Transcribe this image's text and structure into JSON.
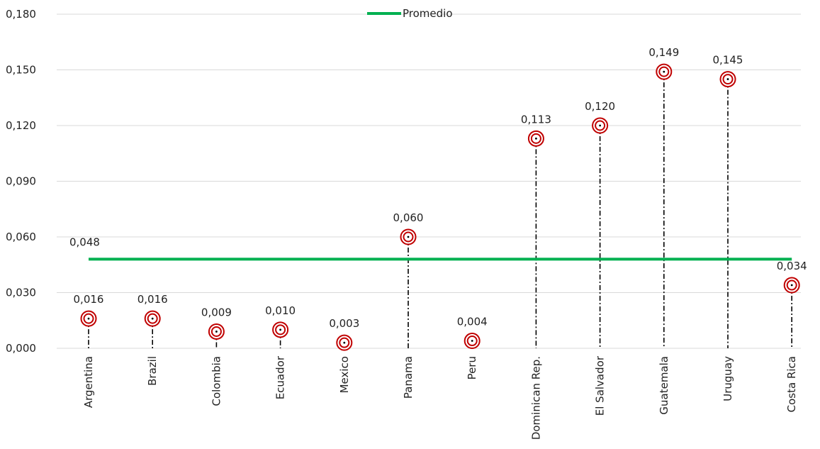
{
  "chart_data": {
    "type": "scatter",
    "title": "",
    "xlabel": "",
    "ylabel": "",
    "categories": [
      "Argentina",
      "Brazil",
      "Colombia",
      "Ecuador",
      "Mexico",
      "Panama",
      "Peru",
      "Dominican Rep.",
      "El Salvador",
      "Guatemala",
      "Uruguay",
      "Costa Rica"
    ],
    "values": [
      0.016,
      0.016,
      0.009,
      0.01,
      0.003,
      0.06,
      0.004,
      0.113,
      0.12,
      0.149,
      0.145,
      0.034
    ],
    "value_labels": [
      "0,016",
      "0,016",
      "0,009",
      "0,010",
      "0,003",
      "0,060",
      "0,004",
      "0,113",
      "0,120",
      "0,149",
      "0,145",
      "0,034"
    ],
    "reference_line": {
      "name": "Promedio",
      "value": 0.048,
      "label": "0,048",
      "color": "#00b050"
    },
    "ylim": [
      0,
      0.18
    ],
    "yticks": [
      0,
      0.03,
      0.06,
      0.09,
      0.12,
      0.15,
      0.18
    ],
    "ytick_labels": [
      "0,000",
      "0,030",
      "0,060",
      "0,090",
      "0,120",
      "0,150",
      "0,180"
    ],
    "grid": true,
    "legend": {
      "position": "top-center",
      "entries": [
        "Promedio"
      ]
    },
    "marker_color": "#c00000",
    "drop_line_style": "dash-dot"
  }
}
